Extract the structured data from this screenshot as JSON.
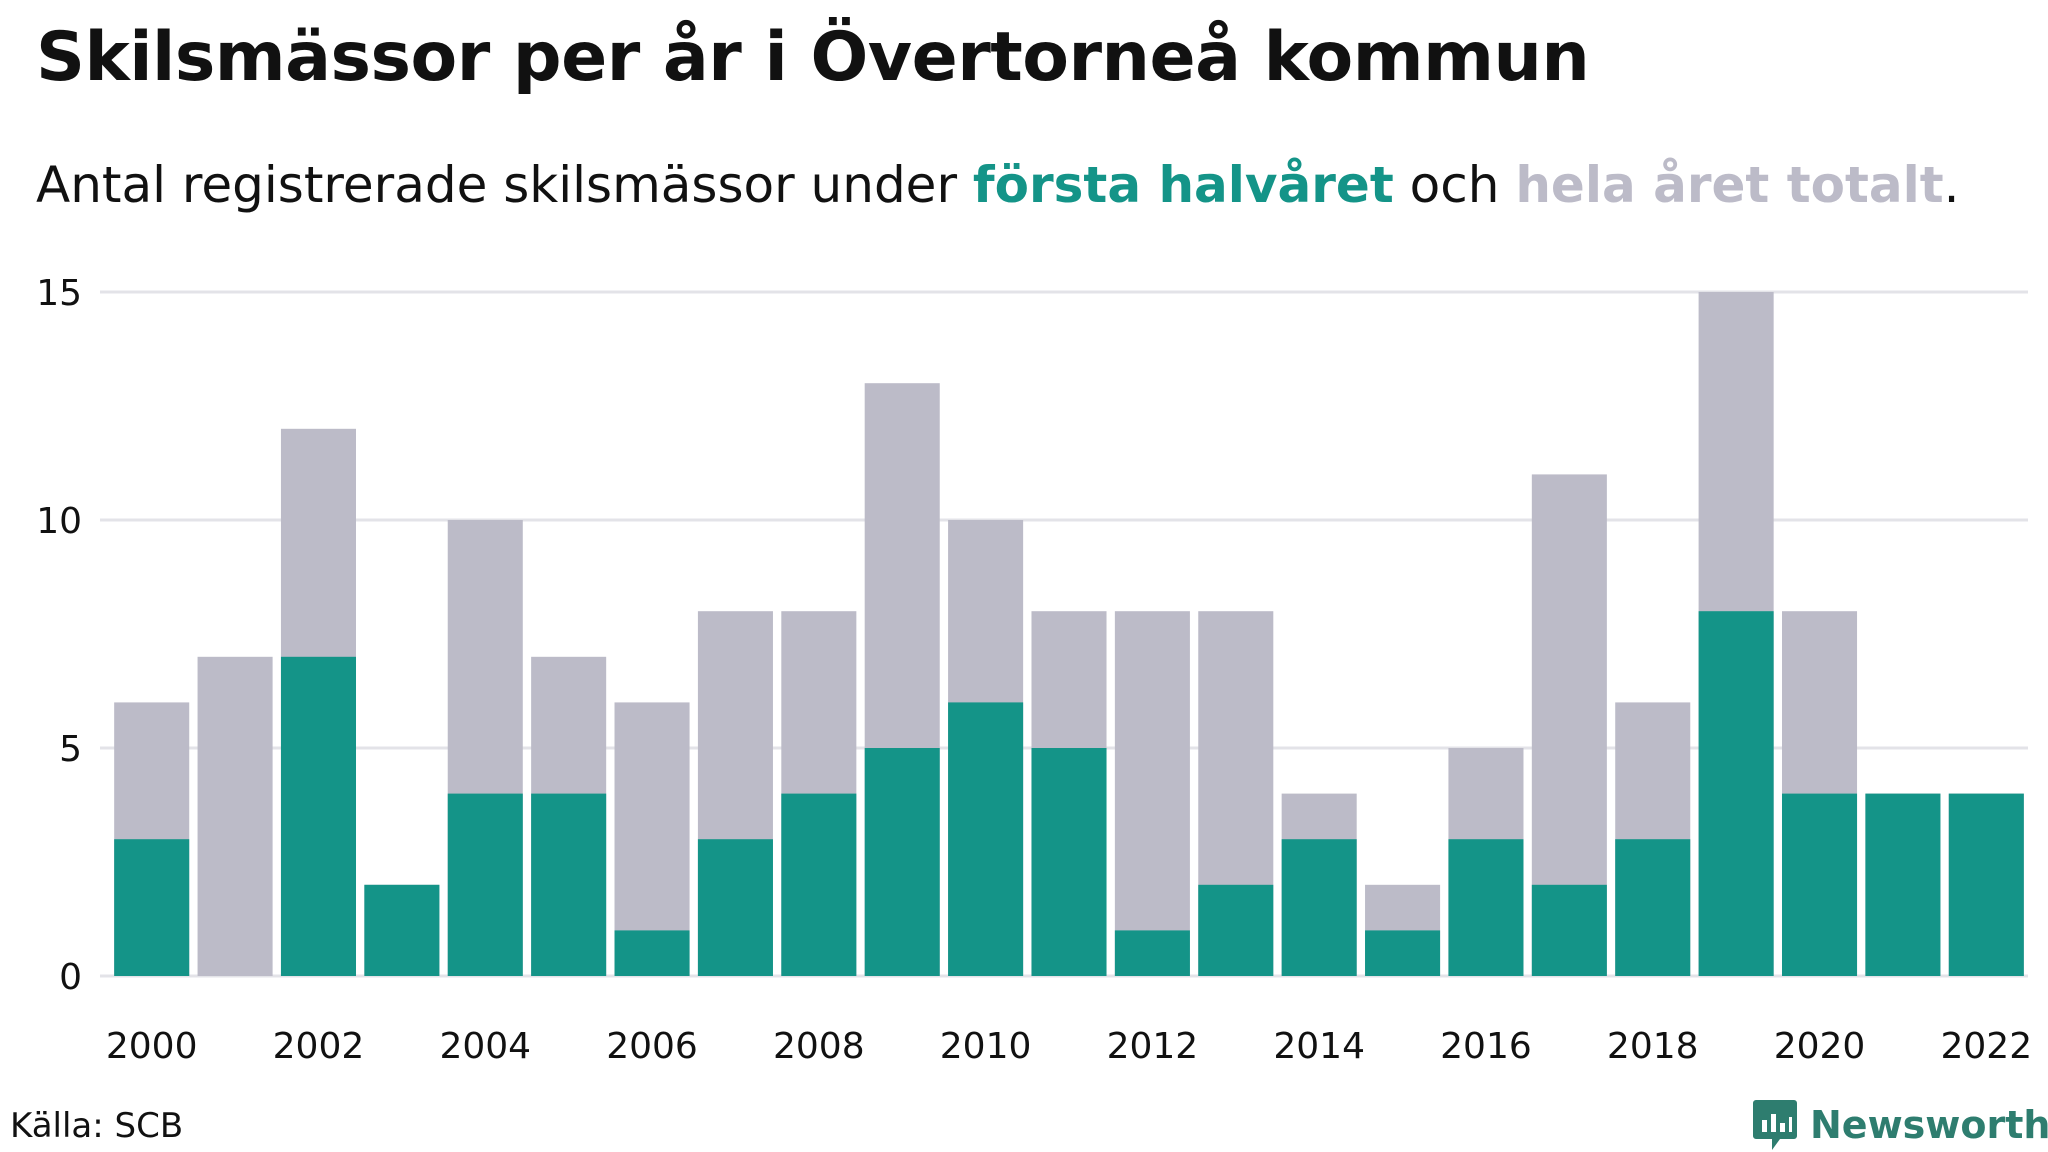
{
  "header": {
    "title": "Skilsmässor per år i Övertorneå kommun",
    "subtitle_pre": "Antal registrerade skilsmässor under ",
    "subtitle_first": "första halvåret",
    "subtitle_mid": " och ",
    "subtitle_total": "hela året totalt",
    "subtitle_post": "."
  },
  "colors": {
    "first_half": "#149488",
    "full_year": "#bcbbc8",
    "grid": "#e3e3e8"
  },
  "footer": {
    "source": "Källa: SCB",
    "brand": "Newsworthy",
    "brand_icon": "newsworthy-logo-icon"
  },
  "chart_data": {
    "type": "bar",
    "stacking": "overlay",
    "categories": [
      "2000",
      "2001",
      "2002",
      "2003",
      "2004",
      "2005",
      "2006",
      "2007",
      "2008",
      "2009",
      "2010",
      "2011",
      "2012",
      "2013",
      "2014",
      "2015",
      "2016",
      "2017",
      "2018",
      "2019",
      "2020",
      "2021",
      "2022"
    ],
    "x_tick_labels": [
      "2000",
      "2002",
      "2004",
      "2006",
      "2008",
      "2010",
      "2012",
      "2014",
      "2016",
      "2018",
      "2020",
      "2022"
    ],
    "series": [
      {
        "name": "hela året totalt",
        "color": "#bcbbc8",
        "values": [
          6,
          7,
          12,
          2,
          10,
          7,
          6,
          8,
          8,
          13,
          10,
          8,
          8,
          8,
          4,
          2,
          5,
          11,
          6,
          15,
          8,
          4,
          4
        ]
      },
      {
        "name": "första halvåret",
        "color": "#149488",
        "values": [
          3,
          0,
          7,
          2,
          4,
          4,
          1,
          3,
          4,
          5,
          6,
          5,
          1,
          2,
          3,
          1,
          3,
          2,
          3,
          8,
          4,
          4,
          4
        ]
      }
    ],
    "ylim": [
      0,
      15
    ],
    "yticks": [
      0,
      5,
      10,
      15
    ],
    "grid": true
  }
}
